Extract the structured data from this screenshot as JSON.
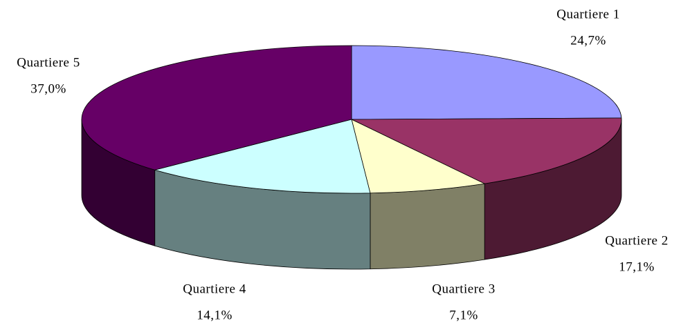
{
  "chart_data": {
    "type": "pie3d",
    "categories": [
      "Quartiere 1",
      "Quartiere 2",
      "Quartiere 3",
      "Quartiere 4",
      "Quartiere 5"
    ],
    "values": [
      24.7,
      17.1,
      7.1,
      14.1,
      37.0
    ],
    "value_labels": [
      "24,7%",
      "17,1%",
      "7,1%",
      "14,1%",
      "37,0%"
    ],
    "colors": [
      "#9999ff",
      "#993366",
      "#ffffcc",
      "#ccffff",
      "#660066"
    ]
  }
}
